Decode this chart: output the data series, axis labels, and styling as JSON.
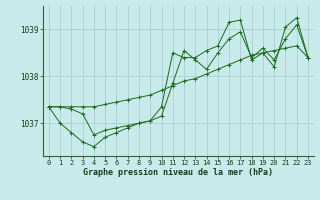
{
  "xlabel": "Graphe pression niveau de la mer (hPa)",
  "background_color": "#c8eaea",
  "grid_color": "#a8cece",
  "line_color": "#1a6b1a",
  "x_ticks": [
    0,
    1,
    2,
    3,
    4,
    5,
    6,
    7,
    8,
    9,
    10,
    11,
    12,
    13,
    14,
    15,
    16,
    17,
    18,
    19,
    20,
    21,
    22,
    23
  ],
  "ylim": [
    1036.3,
    1039.5
  ],
  "yticks": [
    1037,
    1038,
    1039
  ],
  "ytick_labels": [
    "1037",
    "1038",
    "1039"
  ],
  "series": [
    [
      1037.35,
      1037.35,
      1037.3,
      1037.2,
      1036.75,
      1036.85,
      1036.9,
      1036.95,
      1037.0,
      1037.05,
      1037.15,
      1037.85,
      1038.55,
      1038.35,
      1038.15,
      1038.5,
      1038.8,
      1038.95,
      1038.4,
      1038.6,
      1038.35,
      1038.8,
      1039.1,
      1038.4
    ],
    [
      1037.35,
      1037.0,
      1036.8,
      1036.6,
      1036.5,
      1036.7,
      1036.8,
      1036.9,
      1037.0,
      1037.05,
      1037.35,
      1038.5,
      1038.4,
      1038.4,
      1038.55,
      1038.65,
      1039.15,
      1039.2,
      1038.35,
      1038.5,
      1038.2,
      1039.05,
      1039.25,
      1038.4
    ],
    [
      1037.35,
      1037.35,
      1037.35,
      1037.35,
      1037.35,
      1037.4,
      1037.45,
      1037.5,
      1037.55,
      1037.6,
      1037.7,
      1037.8,
      1037.9,
      1037.95,
      1038.05,
      1038.15,
      1038.25,
      1038.35,
      1038.45,
      1038.5,
      1038.55,
      1038.6,
      1038.65,
      1038.4
    ]
  ]
}
